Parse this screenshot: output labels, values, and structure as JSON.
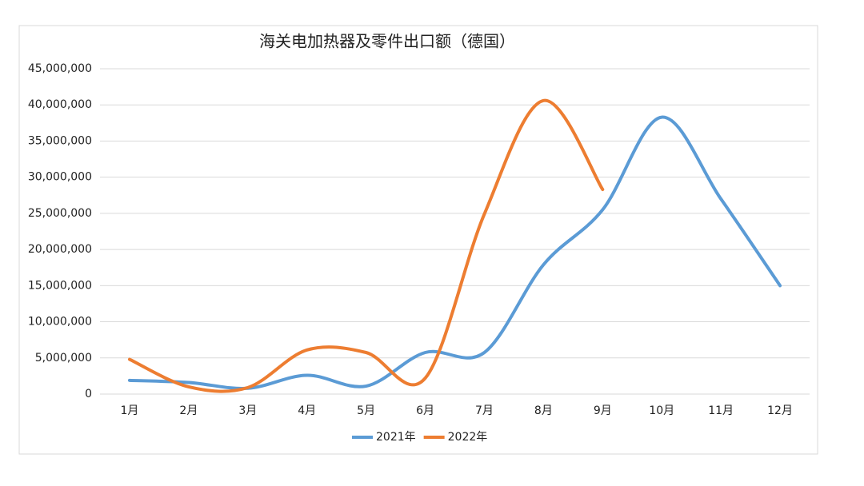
{
  "chart_data": {
    "type": "line",
    "title": "海关电加热器及零件出口额（德国）",
    "categories": [
      "1月",
      "2月",
      "3月",
      "4月",
      "5月",
      "6月",
      "7月",
      "8月",
      "9月",
      "10月",
      "11月",
      "12月"
    ],
    "series": [
      {
        "name": "2021年",
        "color": "#5b9bd5",
        "values": [
          1900000,
          1600000,
          800000,
          2600000,
          1100000,
          5750000,
          5750000,
          17900000,
          25500000,
          38300000,
          27000000,
          15000000
        ]
      },
      {
        "name": "2022年",
        "color": "#ed7d31",
        "values": [
          4800000,
          1000000,
          900000,
          6100000,
          5750000,
          2200000,
          24900000,
          40600000,
          28300000,
          null,
          null,
          null
        ]
      }
    ],
    "ylim": [
      0,
      45000000
    ],
    "yticks": [
      0,
      {
        "value": 5000000,
        "label": "5,000,000"
      },
      {
        "value": 10000000,
        "label": "10,000,000"
      },
      {
        "value": 15000000,
        "label": "15,000,000"
      },
      {
        "value": 20000000,
        "label": "20,000,000"
      },
      {
        "value": 25000000,
        "label": "25,000,000"
      },
      {
        "value": 30000000,
        "label": "30,000,000"
      },
      {
        "value": 35000000,
        "label": "35,000,000"
      },
      {
        "value": 40000000,
        "label": "40,000,000"
      },
      {
        "value": 45000000,
        "label": "45,000,000"
      }
    ],
    "grid": true,
    "legend": "bottom",
    "smooth": true
  }
}
